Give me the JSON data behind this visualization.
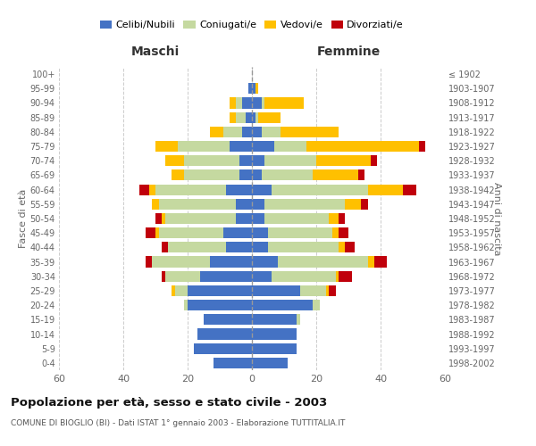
{
  "age_groups": [
    "0-4",
    "5-9",
    "10-14",
    "15-19",
    "20-24",
    "25-29",
    "30-34",
    "35-39",
    "40-44",
    "45-49",
    "50-54",
    "55-59",
    "60-64",
    "65-69",
    "70-74",
    "75-79",
    "80-84",
    "85-89",
    "90-94",
    "95-99",
    "100+"
  ],
  "birth_years": [
    "1998-2002",
    "1993-1997",
    "1988-1992",
    "1983-1987",
    "1978-1982",
    "1973-1977",
    "1968-1972",
    "1963-1967",
    "1958-1962",
    "1953-1957",
    "1948-1952",
    "1943-1947",
    "1938-1942",
    "1933-1937",
    "1928-1932",
    "1923-1927",
    "1918-1922",
    "1913-1917",
    "1908-1912",
    "1903-1907",
    "≤ 1902"
  ],
  "maschi": {
    "celibi": [
      12,
      18,
      17,
      15,
      20,
      20,
      16,
      13,
      8,
      9,
      5,
      5,
      8,
      4,
      4,
      7,
      3,
      2,
      3,
      1,
      0
    ],
    "coniugati": [
      0,
      0,
      0,
      0,
      1,
      4,
      11,
      18,
      18,
      20,
      22,
      24,
      22,
      17,
      17,
      16,
      6,
      3,
      2,
      0,
      0
    ],
    "vedovi": [
      0,
      0,
      0,
      0,
      0,
      1,
      0,
      0,
      0,
      1,
      1,
      2,
      2,
      4,
      6,
      7,
      4,
      2,
      2,
      0,
      0
    ],
    "divorziati": [
      0,
      0,
      0,
      0,
      0,
      0,
      1,
      2,
      2,
      3,
      2,
      0,
      3,
      0,
      0,
      0,
      0,
      0,
      0,
      0,
      0
    ]
  },
  "femmine": {
    "nubili": [
      11,
      14,
      14,
      14,
      19,
      15,
      6,
      8,
      5,
      5,
      4,
      4,
      6,
      3,
      4,
      7,
      3,
      1,
      3,
      1,
      0
    ],
    "coniugate": [
      0,
      0,
      0,
      1,
      2,
      8,
      20,
      28,
      22,
      20,
      20,
      25,
      30,
      16,
      16,
      10,
      6,
      1,
      1,
      0,
      0
    ],
    "vedove": [
      0,
      0,
      0,
      0,
      0,
      1,
      1,
      2,
      2,
      2,
      3,
      5,
      11,
      14,
      17,
      35,
      18,
      7,
      12,
      1,
      0
    ],
    "divorziate": [
      0,
      0,
      0,
      0,
      0,
      2,
      4,
      4,
      3,
      3,
      2,
      2,
      4,
      2,
      2,
      2,
      0,
      0,
      0,
      0,
      0
    ]
  },
  "colors": {
    "celibi": "#4472c4",
    "coniugati": "#c5d9a0",
    "vedovi": "#ffc000",
    "divorziati": "#c0000b"
  },
  "title": "Popolazione per età, sesso e stato civile - 2003",
  "subtitle": "COMUNE DI BIOGLIO (BI) - Dati ISTAT 1° gennaio 2003 - Elaborazione TUTTITALIA.IT",
  "xlabel_left": "Maschi",
  "xlabel_right": "Femmine",
  "ylabel_left": "Fasce di età",
  "ylabel_right": "Anni di nascita",
  "xlim": 60,
  "legend_labels": [
    "Celibi/Nubili",
    "Coniugati/e",
    "Vedovi/e",
    "Divorziati/e"
  ],
  "bg_color": "#ffffff",
  "grid_color": "#cccccc"
}
